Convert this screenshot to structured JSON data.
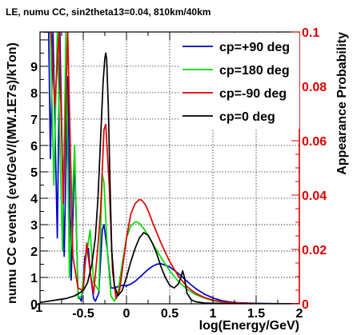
{
  "chart_data": {
    "type": "line",
    "title": "LE, numu CC, sin2theta13=0.04, 810km/40km",
    "xlabel": "log(Energy/GeV)",
    "ylabel": "numu CC events (evt/GeV/(MW.1E7s)/kTon)",
    "y2label": "Appearance Probability",
    "xlim": [
      -1,
      2
    ],
    "ylim": [
      0,
      10.3
    ],
    "y2lim": [
      0,
      0.1
    ],
    "grid": true,
    "legend_position": "top-right",
    "x_ticks": [
      "-0.5",
      "0",
      "0.5",
      "1",
      "1.5",
      "2"
    ],
    "x_tick_values": [
      -0.5,
      0,
      0.5,
      1,
      1.5,
      2
    ],
    "y_ticks": [
      "0",
      "1",
      "2",
      "3",
      "4",
      "5",
      "6",
      "7",
      "8",
      "9"
    ],
    "y_tick_values": [
      0,
      1,
      2,
      3,
      4,
      5,
      6,
      7,
      8,
      9
    ],
    "y2_ticks": [
      "0",
      "0.02",
      "0.04",
      "0.06",
      "0.08",
      "0.1"
    ],
    "y2_tick_values": [
      0,
      0.02,
      0.04,
      0.06,
      0.08,
      0.1
    ],
    "x_tick_labels_extra": [
      "-1"
    ],
    "series": [
      {
        "name": "cp=+90 deg",
        "color": "#0000cc",
        "x": [
          -0.96,
          -0.9,
          -0.88,
          -0.85,
          -0.8,
          -0.77,
          -0.72,
          -0.68,
          -0.64,
          -0.6,
          -0.56,
          -0.52,
          -0.48,
          -0.44,
          -0.42,
          -0.38,
          -0.36,
          -0.32,
          -0.28,
          -0.26,
          -0.22,
          -0.18,
          -0.14,
          -0.1,
          -0.05,
          0.0,
          0.05,
          0.1,
          0.15,
          0.2,
          0.25,
          0.3,
          0.35,
          0.4,
          0.5,
          0.6,
          0.7,
          0.8,
          0.9,
          1.0,
          1.1,
          1.2,
          1.3,
          1.5,
          1.7,
          2.0
        ],
        "y": [
          10.3,
          10.3,
          5.5,
          10.3,
          2.5,
          10.3,
          1.8,
          8.6,
          0.9,
          5.6,
          0.3,
          0.1,
          1.8,
          2.1,
          1.2,
          0.2,
          0.1,
          0.4,
          2.8,
          3.0,
          2.0,
          0.6,
          0.6,
          0.65,
          0.7,
          0.68,
          0.75,
          0.85,
          1.0,
          1.15,
          1.3,
          1.42,
          1.5,
          1.52,
          1.4,
          1.15,
          0.85,
          0.58,
          0.37,
          0.22,
          0.12,
          0.07,
          0.04,
          0.02,
          0.01,
          0.0
        ]
      },
      {
        "name": "cp=180 deg",
        "color": "#00dd00",
        "x": [
          -0.95,
          -0.88,
          -0.84,
          -0.8,
          -0.74,
          -0.7,
          -0.66,
          -0.6,
          -0.56,
          -0.52,
          -0.48,
          -0.42,
          -0.38,
          -0.32,
          -0.28,
          -0.26,
          -0.22,
          -0.18,
          -0.14,
          -0.1,
          -0.05,
          0.0,
          0.05,
          0.1,
          0.12,
          0.15,
          0.2,
          0.25,
          0.3,
          0.4,
          0.5,
          0.6,
          0.7,
          0.8,
          0.9,
          1.0,
          1.1,
          1.2,
          1.3,
          1.5,
          1.7,
          2.0
        ],
        "y": [
          10.3,
          10.3,
          4.5,
          10.3,
          2.0,
          10.3,
          1.0,
          6.0,
          0.2,
          0.3,
          1.5,
          2.8,
          0.8,
          0.5,
          4.9,
          4.6,
          2.0,
          0.3,
          0.1,
          0.4,
          1.5,
          2.5,
          2.95,
          3.1,
          3.1,
          3.05,
          2.85,
          2.6,
          2.3,
          1.75,
          1.25,
          0.85,
          0.55,
          0.35,
          0.22,
          0.12,
          0.07,
          0.04,
          0.02,
          0.01,
          0.0,
          0.0
        ]
      },
      {
        "name": "cp=-90 deg",
        "color": "#e00000",
        "x": [
          -0.95,
          -0.87,
          -0.83,
          -0.78,
          -0.73,
          -0.68,
          -0.62,
          -0.56,
          -0.5,
          -0.46,
          -0.42,
          -0.38,
          -0.34,
          -0.3,
          -0.26,
          -0.24,
          -0.2,
          -0.16,
          -0.12,
          -0.08,
          -0.04,
          0.0,
          0.05,
          0.1,
          0.15,
          0.18,
          0.22,
          0.26,
          0.3,
          0.4,
          0.5,
          0.6,
          0.7,
          0.8,
          0.9,
          1.0,
          1.1,
          1.2,
          1.3,
          1.5,
          1.7,
          2.0
        ],
        "y": [
          10.3,
          10.3,
          7.5,
          10.3,
          3.8,
          10.3,
          1.8,
          0.6,
          0.5,
          2.3,
          1.2,
          0.4,
          1.8,
          3.5,
          6.6,
          6.8,
          4.5,
          1.2,
          0.2,
          0.5,
          1.5,
          2.5,
          3.4,
          3.8,
          3.95,
          3.92,
          3.75,
          3.45,
          3.1,
          2.3,
          1.6,
          1.05,
          0.65,
          0.4,
          0.24,
          0.14,
          0.08,
          0.05,
          0.03,
          0.01,
          0.0,
          0.0
        ]
      },
      {
        "name": "cp=0 deg",
        "color": "#000000",
        "x": [
          -1.0,
          -0.9,
          -0.8,
          -0.7,
          -0.6,
          -0.5,
          -0.45,
          -0.4,
          -0.36,
          -0.33,
          -0.3,
          -0.27,
          -0.25,
          -0.24,
          -0.23,
          -0.21,
          -0.19,
          -0.17,
          -0.14,
          -0.1,
          -0.05,
          0.0,
          0.05,
          0.1,
          0.15,
          0.2,
          0.25,
          0.3,
          0.35,
          0.4,
          0.45,
          0.5,
          0.55,
          0.6,
          0.63,
          0.65,
          0.67,
          0.7,
          0.75,
          0.8,
          0.9,
          1.0,
          1.2,
          1.4,
          2.0
        ],
        "y": [
          0.05,
          0.1,
          0.15,
          0.2,
          0.3,
          0.5,
          0.8,
          1.5,
          2.5,
          4.0,
          6.2,
          8.4,
          9.3,
          9.5,
          9.3,
          7.5,
          4.5,
          2.0,
          0.7,
          0.3,
          0.5,
          1.0,
          1.6,
          2.1,
          2.5,
          2.7,
          2.6,
          2.3,
          1.9,
          1.4,
          1.0,
          0.7,
          0.6,
          0.75,
          1.0,
          1.25,
          1.0,
          0.4,
          0.15,
          0.08,
          0.03,
          0.02,
          0.01,
          0.0,
          0.0
        ]
      }
    ]
  }
}
